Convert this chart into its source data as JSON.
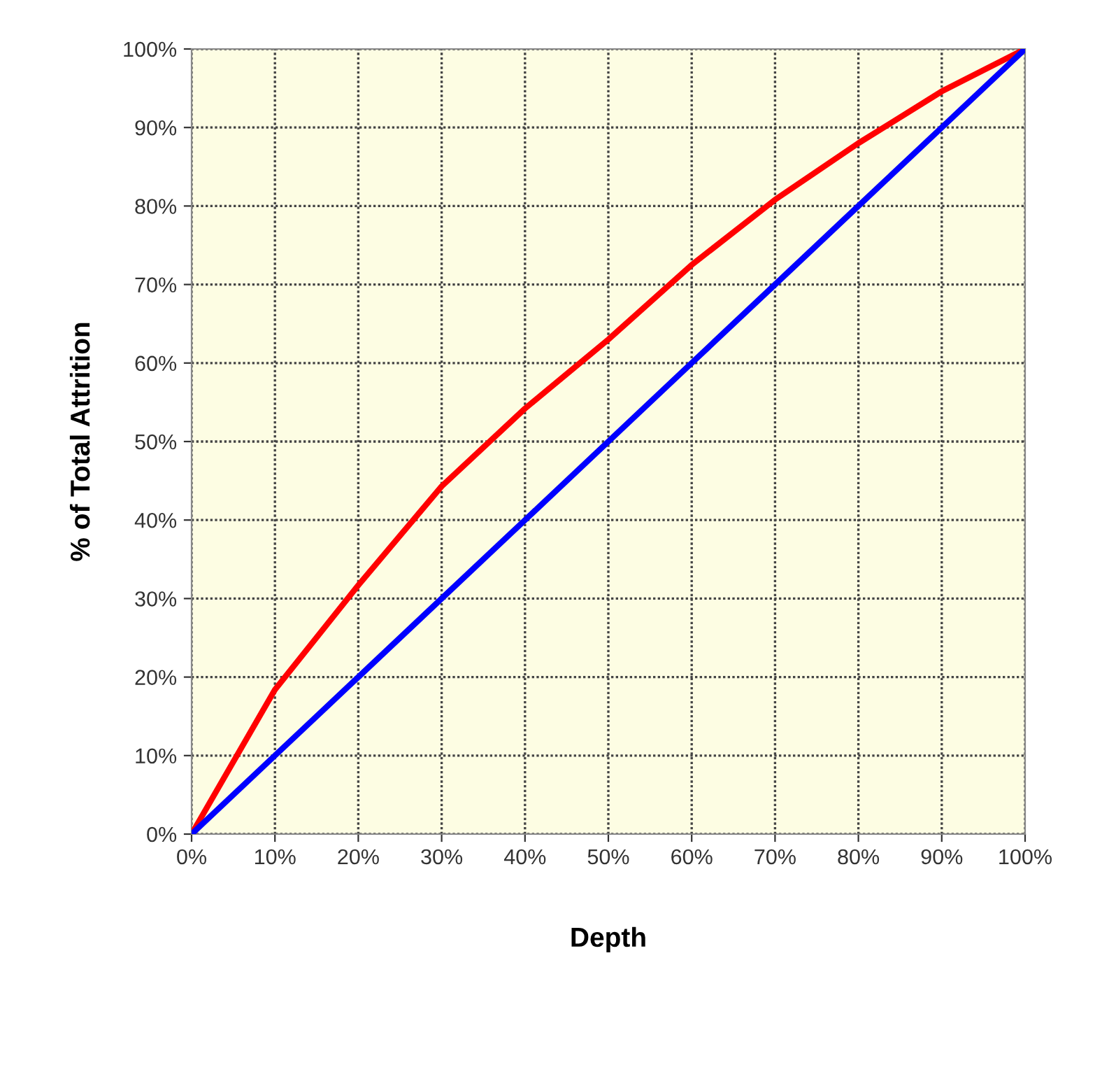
{
  "chart_data": {
    "type": "line",
    "xlabel": "Depth",
    "ylabel": "% of Total Attrition",
    "x": [
      0,
      10,
      20,
      30,
      40,
      50,
      60,
      70,
      80,
      90,
      100
    ],
    "series": [
      {
        "color": "#ff0000",
        "values": [
          0,
          18.4,
          31.7,
          44.3,
          54.2,
          63,
          72.5,
          80.8,
          88,
          94.6,
          100
        ]
      },
      {
        "color": "#0000ff",
        "values": [
          0,
          10,
          20,
          30,
          40,
          50,
          60,
          70,
          80,
          90,
          100
        ]
      }
    ],
    "xlim": [
      0,
      100
    ],
    "ylim": [
      0,
      100
    ],
    "xticks": [
      {
        "value": 0,
        "label": "0%"
      },
      {
        "value": 10,
        "label": "10%"
      },
      {
        "value": 20,
        "label": "20%"
      },
      {
        "value": 30,
        "label": "30%"
      },
      {
        "value": 40,
        "label": "40%"
      },
      {
        "value": 50,
        "label": "50%"
      },
      {
        "value": 60,
        "label": "60%"
      },
      {
        "value": 70,
        "label": "70%"
      },
      {
        "value": 80,
        "label": "80%"
      },
      {
        "value": 90,
        "label": "90%"
      },
      {
        "value": 100,
        "label": "100%"
      }
    ],
    "yticks": [
      {
        "value": 0,
        "label": "0%"
      },
      {
        "value": 10,
        "label": "10%"
      },
      {
        "value": 20,
        "label": "20%"
      },
      {
        "value": 30,
        "label": "30%"
      },
      {
        "value": 40,
        "label": "40%"
      },
      {
        "value": 50,
        "label": "50%"
      },
      {
        "value": 60,
        "label": "60%"
      },
      {
        "value": 70,
        "label": "70%"
      },
      {
        "value": 80,
        "label": "80%"
      },
      {
        "value": 90,
        "label": "90%"
      },
      {
        "value": 100,
        "label": "100%"
      }
    ],
    "grid": true,
    "line_style": "solid"
  }
}
